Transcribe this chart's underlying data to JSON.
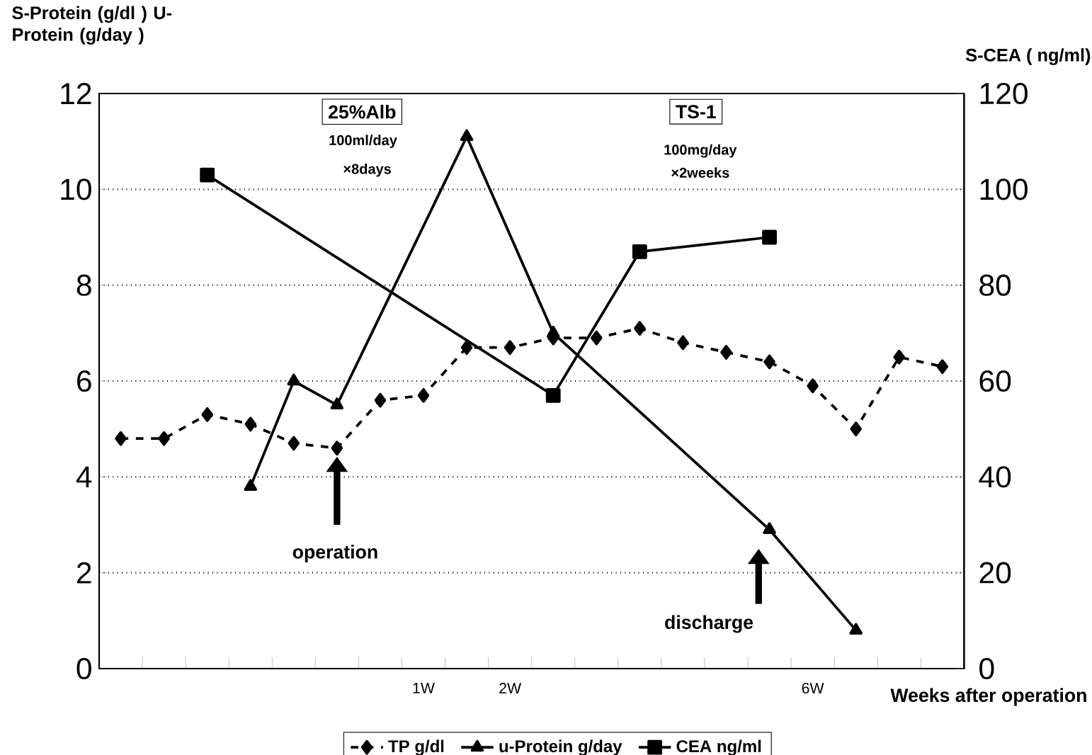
{
  "chart_data": {
    "type": "line",
    "ylabel": "S-Protein (g/dl ) U-Protein (g/day )",
    "y2label": "S-CEA ( ng/ml)",
    "xlabel": "Weeks after operation",
    "categories": [
      null,
      null,
      null,
      null,
      null,
      null,
      null,
      "1W",
      null,
      "2W",
      null,
      null,
      null,
      null,
      null,
      null,
      "6W",
      null,
      null,
      null
    ],
    "series": [
      {
        "name": "TP g/dl",
        "color": "#000000",
        "marker": "diamond",
        "line_style": "dashed",
        "values": [
          4.8,
          4.8,
          5.3,
          5.1,
          4.7,
          4.6,
          5.6,
          5.7,
          6.7,
          6.7,
          6.9,
          6.9,
          7.1,
          6.8,
          6.6,
          6.4,
          5.9,
          5.0,
          6.5,
          6.3
        ]
      },
      {
        "name": "u-Protein g/day",
        "color": "#000000",
        "marker": "triangle",
        "line_style": "solid",
        "values": [
          null,
          null,
          null,
          3.8,
          6.0,
          5.5,
          null,
          null,
          11.1,
          null,
          7.0,
          null,
          null,
          null,
          null,
          2.9,
          null,
          0.8,
          null,
          null
        ]
      },
      {
        "name": "CEA ng/ml",
        "axis": "y2",
        "color": "#000000",
        "marker": "square",
        "line_style": "solid",
        "values": [
          null,
          null,
          103,
          null,
          null,
          null,
          null,
          null,
          null,
          null,
          57,
          null,
          87,
          null,
          null,
          90,
          null,
          null,
          null,
          null
        ]
      }
    ],
    "ylim": [
      0,
      12
    ],
    "yticks": [
      0,
      2,
      4,
      6,
      8,
      10,
      12
    ],
    "y2lim": [
      0,
      120
    ],
    "y2ticks": [
      0,
      20,
      40,
      60,
      80,
      100,
      120
    ],
    "grid": "y",
    "legend": "bottom",
    "annotations": [
      "25%Alb",
      "100ml/day",
      "×8days",
      "TS-1",
      "100mg/day",
      "×2weeks",
      "operation",
      "discharge"
    ]
  }
}
